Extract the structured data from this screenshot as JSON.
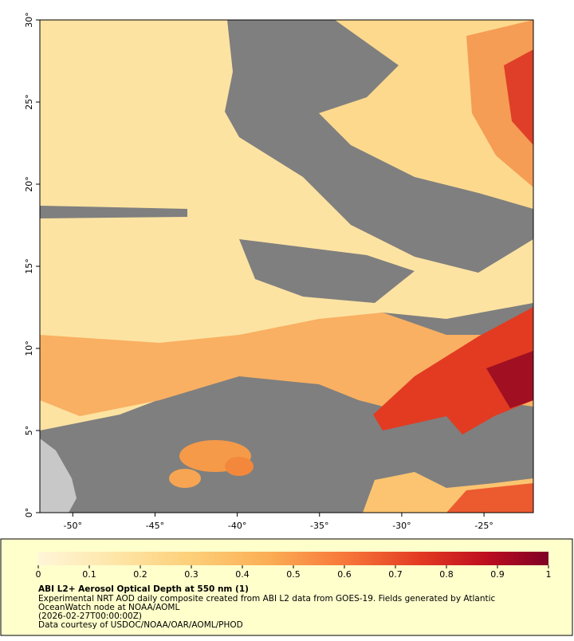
{
  "map": {
    "xlim": [
      -52,
      -22
    ],
    "ylim": [
      0,
      30
    ],
    "xticks": [
      {
        "value": -50,
        "label": "-50°"
      },
      {
        "value": -45,
        "label": "-45°"
      },
      {
        "value": -40,
        "label": "-40°"
      },
      {
        "value": -35,
        "label": "-35°"
      },
      {
        "value": -30,
        "label": "-30°"
      },
      {
        "value": -25,
        "label": "-25°"
      }
    ],
    "yticks": [
      {
        "value": 0,
        "label": "0°"
      },
      {
        "value": 5,
        "label": "5°"
      },
      {
        "value": 10,
        "label": "10°"
      },
      {
        "value": 15,
        "label": "15°"
      },
      {
        "value": 20,
        "label": "20°"
      },
      {
        "value": 25,
        "label": "25°"
      },
      {
        "value": 30,
        "label": "30°"
      }
    ]
  },
  "colorbar": {
    "range": [
      0,
      1
    ],
    "ticks": [
      0,
      0.1,
      0.2,
      0.3,
      0.4,
      0.5,
      0.6,
      0.7,
      0.8,
      0.9,
      1
    ]
  },
  "caption": {
    "title": "ABI L2+ Aerosol Optical Depth at 550 nm (1)",
    "lines": [
      "Experimental NRT AOD daily composite created from ABI L2 data from GOES-19. Fields generated by Atlantic",
      "OceanWatch node at NOAA/AOML",
      "(2026-02-27T00:00:00Z)",
      "Data courtesy of USDOC/NOAA/OAR/AOML/PHOD"
    ]
  }
}
